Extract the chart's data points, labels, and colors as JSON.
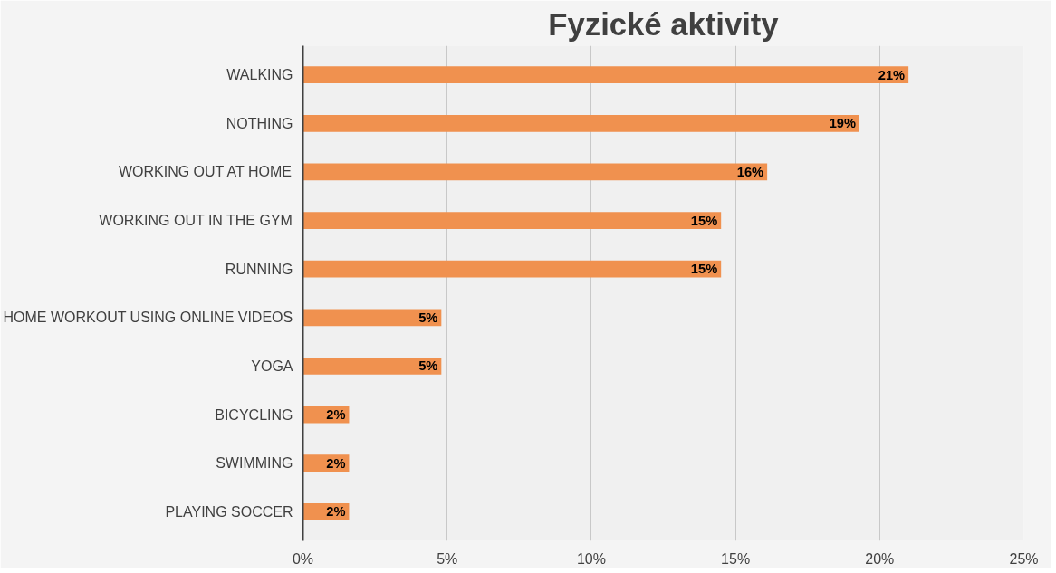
{
  "chart_data": {
    "type": "bar",
    "orientation": "horizontal",
    "title": "Fyzické aktivity",
    "categories": [
      "WALKING",
      "NOTHING",
      "WORKING OUT AT HOME",
      "WORKING OUT IN THE GYM",
      "RUNNING",
      "HOME WORKOUT USING ONLINE VIDEOS",
      "YOGA",
      "BICYCLING",
      "SWIMMING",
      "PLAYING SOCCER"
    ],
    "values": [
      21.0,
      19.3,
      16.1,
      14.5,
      14.5,
      4.8,
      4.8,
      1.6,
      1.6,
      1.6
    ],
    "value_labels": [
      "21%",
      "19%",
      "16%",
      "15%",
      "15%",
      "5%",
      "5%",
      "2%",
      "2%",
      "2%"
    ],
    "color": "#f0914f",
    "xlim": [
      0,
      25
    ],
    "xticks": [
      {
        "value": 0,
        "label": "0%"
      },
      {
        "value": 5,
        "label": "5%"
      },
      {
        "value": 10,
        "label": "10%"
      },
      {
        "value": 15,
        "label": "15%"
      },
      {
        "value": 20,
        "label": "20%"
      },
      {
        "value": 25,
        "label": "25%"
      }
    ],
    "grid": "x"
  }
}
